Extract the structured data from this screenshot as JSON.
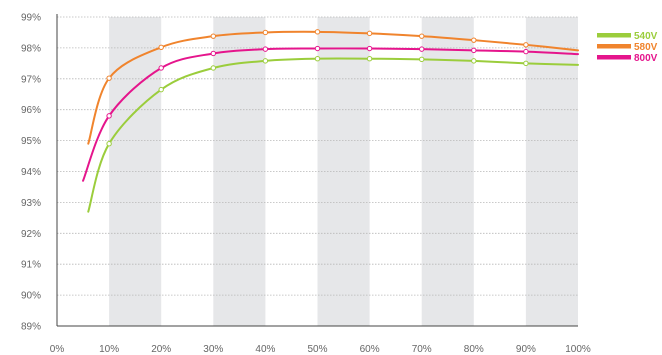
{
  "chart_data": {
    "type": "line",
    "title": "",
    "xlabel": "",
    "ylabel": "",
    "x_ticks": [
      "0%",
      "10%",
      "20%",
      "30%",
      "40%",
      "50%",
      "60%",
      "70%",
      "80%",
      "90%",
      "100%"
    ],
    "y_ticks": [
      "89%",
      "90%",
      "91%",
      "92%",
      "93%",
      "94%",
      "95%",
      "96%",
      "97%",
      "98%",
      "99%"
    ],
    "xlim": [
      0,
      100
    ],
    "ylim": [
      89,
      99
    ],
    "x_unit": "%",
    "y_unit": "%",
    "grid": "horizontal dotted lines, alternating shaded vertical bands",
    "legend_position": "top-right",
    "series": [
      {
        "name": "540V",
        "color": "#9bcd3c",
        "x": [
          6,
          10,
          20,
          30,
          40,
          50,
          60,
          70,
          80,
          90,
          100
        ],
        "y": [
          92.7,
          94.9,
          96.65,
          97.35,
          97.58,
          97.65,
          97.65,
          97.63,
          97.58,
          97.5,
          97.45
        ],
        "markers_x": [
          10,
          20,
          30,
          40,
          50,
          60,
          70,
          80,
          90
        ]
      },
      {
        "name": "580V",
        "color": "#f0842d",
        "x": [
          6,
          10,
          20,
          30,
          40,
          50,
          60,
          70,
          80,
          90,
          100
        ],
        "y": [
          94.9,
          97.02,
          98.02,
          98.38,
          98.5,
          98.52,
          98.47,
          98.38,
          98.25,
          98.1,
          97.92
        ],
        "markers_x": [
          10,
          20,
          30,
          40,
          50,
          60,
          70,
          80,
          90
        ]
      },
      {
        "name": "800V",
        "color": "#e5158c",
        "x": [
          5,
          10,
          20,
          30,
          40,
          50,
          60,
          70,
          80,
          90,
          100
        ],
        "y": [
          93.7,
          95.8,
          97.35,
          97.82,
          97.96,
          97.98,
          97.98,
          97.96,
          97.92,
          97.88,
          97.8
        ],
        "markers_x": [
          10,
          20,
          30,
          40,
          50,
          60,
          70,
          80,
          90
        ]
      }
    ]
  }
}
